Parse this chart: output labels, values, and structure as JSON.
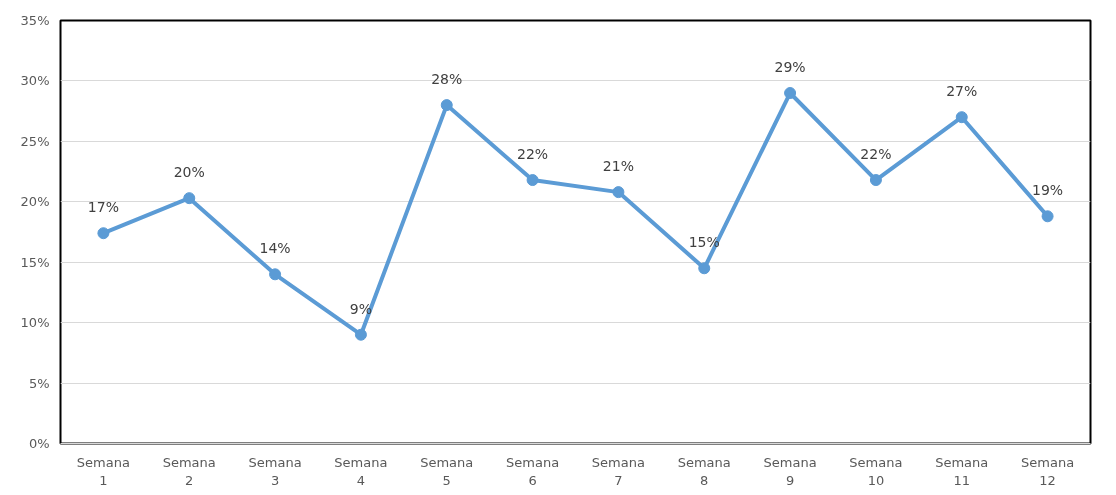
{
  "chart_data": {
    "type": "line",
    "categories": [
      "Semana 1",
      "Semana 2",
      "Semana 3",
      "Semana 4",
      "Semana 5",
      "Semana 6",
      "Semana 7",
      "Semana 8",
      "Semana 9",
      "Semana 10",
      "Semana 11",
      "Semana 12"
    ],
    "series": [
      {
        "color": "#5b9bd5",
        "values": [
          17.4,
          20.3,
          14,
          9,
          28,
          21.8,
          20.8,
          14.5,
          29,
          21.8,
          27,
          18.8
        ],
        "value_labels": [
          "17%",
          "20%",
          "14%",
          "9%",
          "28%",
          "22%",
          "21%",
          "15%",
          "29%",
          "22%",
          "27%",
          "19%"
        ]
      }
    ],
    "ylim": [
      0,
      35
    ],
    "yticks": [
      {
        "value": 0,
        "label": "0%"
      },
      {
        "value": 5,
        "label": "5%"
      },
      {
        "value": 10,
        "label": "10%"
      },
      {
        "value": 15,
        "label": "15%"
      },
      {
        "value": 20,
        "label": "20%"
      },
      {
        "value": 25,
        "label": "25%"
      },
      {
        "value": 30,
        "label": "30%"
      },
      {
        "value": 35,
        "label": "35%"
      }
    ],
    "grid": "y",
    "marker": "circle",
    "line_style": "solid"
  }
}
